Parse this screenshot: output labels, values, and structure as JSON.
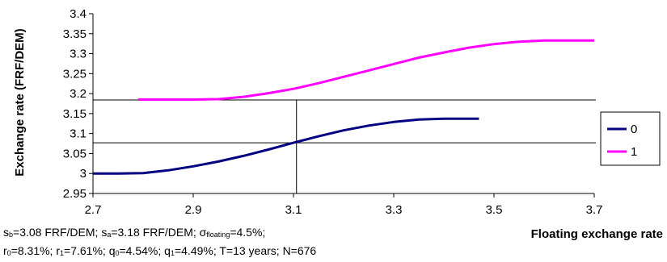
{
  "chart_data": {
    "type": "line",
    "xlabel": "Floating exchange rate",
    "ylabel": "Exchange rate (FRF/DEM)",
    "xlim": [
      2.7,
      3.7
    ],
    "ylim": [
      2.95,
      3.4
    ],
    "x_ticks": [
      "2.7",
      "2.9",
      "3.1",
      "3.3",
      "3.5",
      "3.7"
    ],
    "y_ticks": [
      "2.95",
      "3",
      "3.05",
      "3.1",
      "3.15",
      "3.2",
      "3.25",
      "3.3",
      "3.35",
      "3.4"
    ],
    "grid": false,
    "legend_position": "right",
    "series": [
      {
        "name": "0",
        "color": "#000080",
        "x": [
          2.7,
          2.75,
          2.8,
          2.85,
          2.9,
          2.95,
          3.0,
          3.05,
          3.1,
          3.15,
          3.2,
          3.25,
          3.3,
          3.35,
          3.4,
          3.47
        ],
        "y": [
          3.0,
          3.0,
          3.001,
          3.008,
          3.018,
          3.03,
          3.044,
          3.06,
          3.077,
          3.093,
          3.108,
          3.12,
          3.129,
          3.135,
          3.137,
          3.137
        ]
      },
      {
        "name": "1",
        "color": "#ff00ff",
        "x": [
          2.79,
          2.85,
          2.9,
          2.95,
          3.0,
          3.05,
          3.1,
          3.15,
          3.2,
          3.25,
          3.3,
          3.35,
          3.4,
          3.45,
          3.5,
          3.55,
          3.6,
          3.65,
          3.7
        ],
        "y": [
          3.185,
          3.185,
          3.185,
          3.186,
          3.192,
          3.201,
          3.212,
          3.226,
          3.242,
          3.258,
          3.274,
          3.29,
          3.303,
          3.315,
          3.324,
          3.33,
          3.333,
          3.333,
          3.333
        ]
      }
    ],
    "reference_lines": {
      "horizontal": [
        3.077,
        3.184
      ],
      "vertical": [
        3.106
      ]
    }
  },
  "notes": {
    "line1": {
      "s_b_sym": "s",
      "s_b_sub": "b",
      "s_b_val": "=3.08 FRF/DEM; ",
      "s_a_sym": "s",
      "s_a_sub": "a",
      "s_a_val": "=3.18 FRF/DEM; ",
      "sigma_sym": "σ",
      "sigma_sub": "floating",
      "sigma_val": "=4.5%;"
    },
    "line2": {
      "r0_sym": "r",
      "r0_sub": "0",
      "r0_val": "=8.31%;  ",
      "r1_sym": "r",
      "r1_sub": "1",
      "r1_val": "=7.61%; ",
      "q0_sym": "q",
      "q0_sub": "0",
      "q0_val": "=4.54%; ",
      "q1_sym": "q",
      "q1_sub": "1",
      "q1_val": "=4.49%; T=13 years; N=676"
    }
  }
}
